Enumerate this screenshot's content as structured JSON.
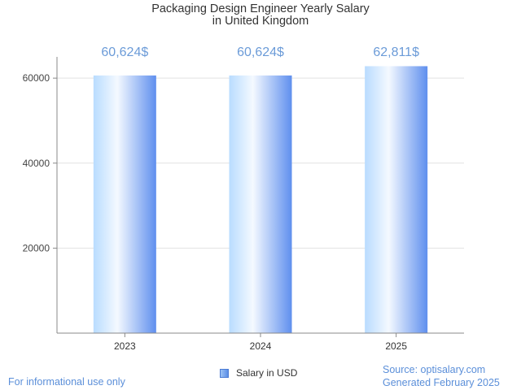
{
  "chart_data": {
    "type": "bar",
    "title": [
      "Packaging Design Engineer Yearly Salary",
      "in United Kingdom"
    ],
    "categories": [
      "2023",
      "2024",
      "2025"
    ],
    "series": [
      {
        "name": "Salary in USD",
        "values": [
          60624,
          60624,
          62811
        ]
      }
    ],
    "data_labels": [
      "60,624$",
      "60,624$",
      "62,811$"
    ],
    "yticks": [
      20000,
      40000,
      60000
    ],
    "ylim": [
      0,
      65000
    ],
    "grid": true,
    "legend_position": "bottom"
  },
  "colors": {
    "bar_light": "#f4f9ff",
    "bar_mid": "#b9dcff",
    "bar_dark": "#5f8fee",
    "label": "#6b9bd8"
  },
  "footer": {
    "disclaimer": "For informational use only",
    "source": "Source: optisalary.com",
    "generated": "Generated February 2025"
  }
}
